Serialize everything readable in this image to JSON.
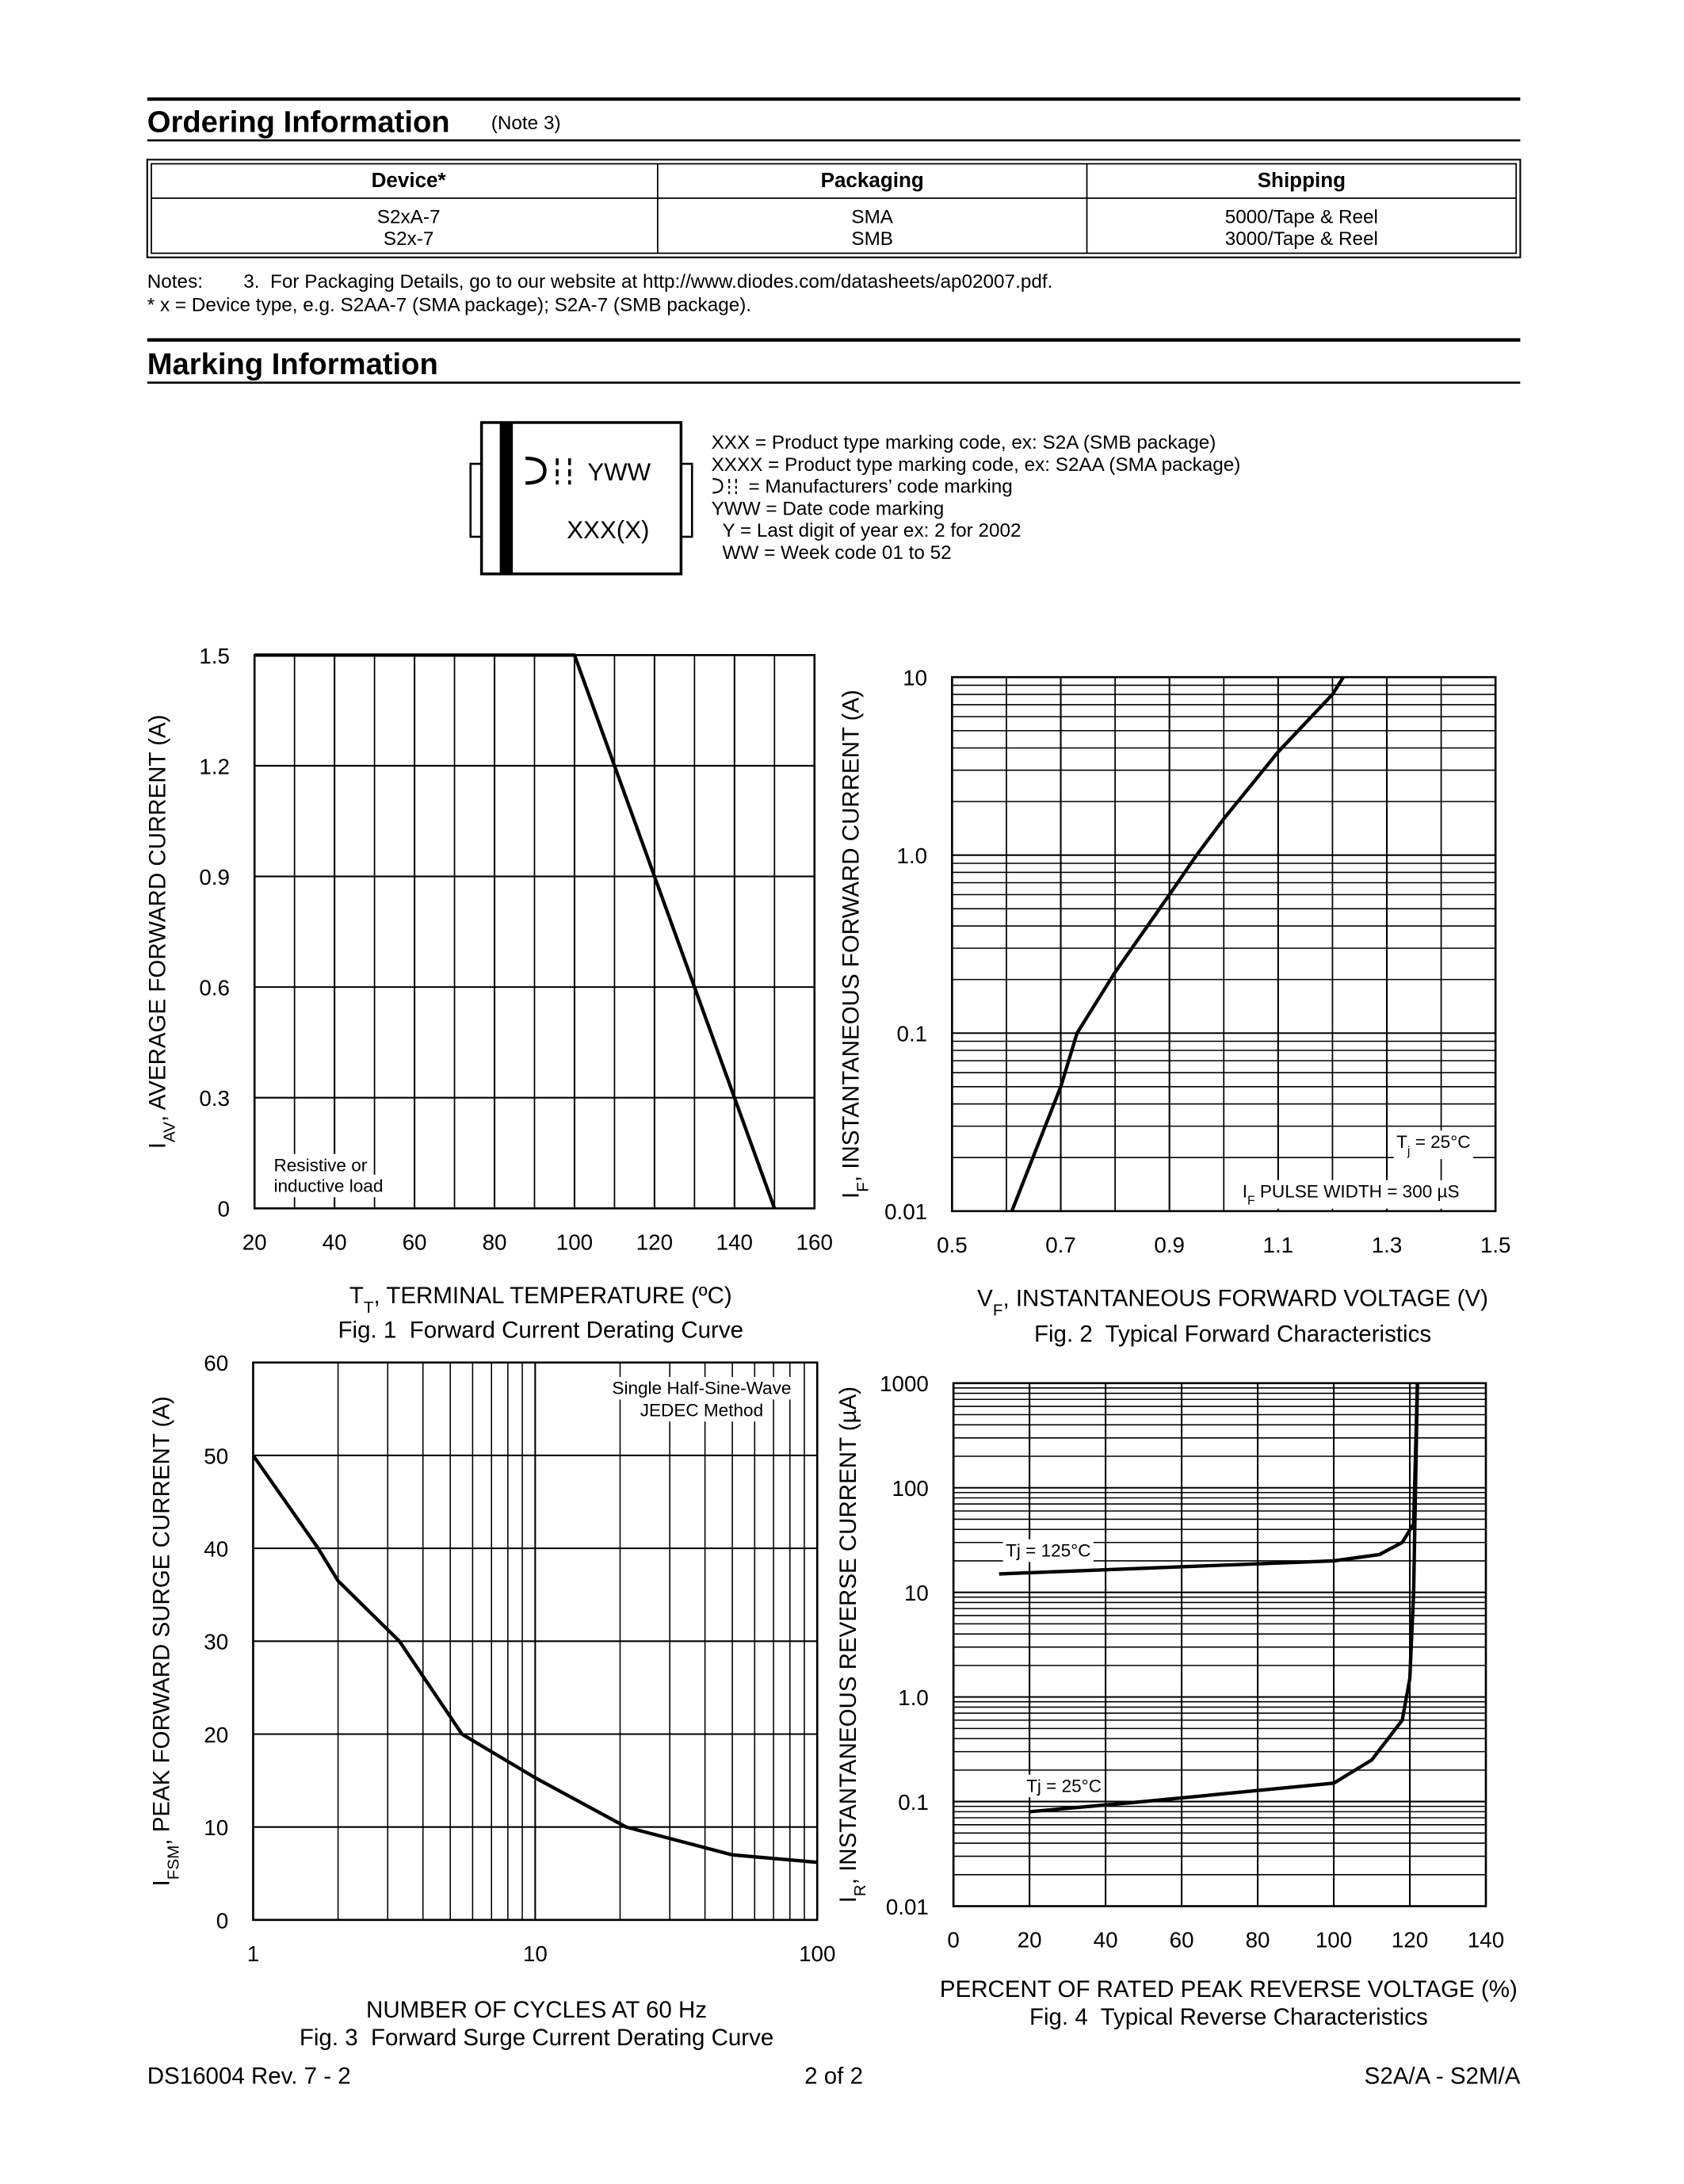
{
  "ordering": {
    "title": "Ordering Information",
    "note_ref": "(Note 3)",
    "table": {
      "header": [
        "Device*",
        "Packaging",
        "Shipping"
      ],
      "rows": [
        [
          "S2xA-7",
          "SMA",
          "5000/Tape & Reel"
        ],
        [
          "S2x-7",
          "SMB",
          "3000/Tape & Reel"
        ]
      ]
    },
    "notes_label": "Notes:",
    "notes": [
      "3.  For Packaging Details, go to our website at http://www.diodes.com/datasheets/ap02007.pdf."
    ],
    "footnote": "* x = Device type, e.g. S2AA-7 (SMA package); S2A-7 (SMB package)."
  },
  "marking": {
    "title": "Marking Information",
    "package": {
      "date_code": "YWW",
      "type_code": "XXX(X)"
    },
    "legend": [
      "XXX = Product type marking code, ex: S2A (SMB package)",
      "XXXX = Product type marking code, ex: S2AA (SMA package)",
      "= Manufacturers’ code marking",
      "YWW = Date code marking",
      "Y = Last digit of year ex: 2 for 2002",
      "WW = Week code 01 to 52"
    ]
  },
  "chart_data": [
    {
      "type": "line",
      "xlabel": [
        "T",
        "T",
        ", TERMINAL TEMPERATURE (ºC)"
      ],
      "ylabel": [
        "I",
        "AV",
        ", AVERAGE FORWARD CURRENT (A)"
      ],
      "caption": "Fig. 1  Forward Current Derating Curve",
      "xlim": [
        20,
        160
      ],
      "xticks": [
        20,
        40,
        60,
        80,
        100,
        120,
        140,
        160
      ],
      "ylim": [
        0,
        1.5
      ],
      "yticks": [
        0,
        0.3,
        0.6,
        0.9,
        1.2,
        1.5
      ],
      "grid": true,
      "minor_x_grid": true,
      "series": [
        {
          "color": "#000000",
          "x": [
            20,
            100,
            150
          ],
          "values": [
            1.5,
            1.5,
            0
          ]
        }
      ],
      "annotations": [
        [
          "Resistive or"
        ],
        [
          "inductive load"
        ]
      ]
    },
    {
      "type": "line",
      "xlabel": [
        "V",
        "F",
        ", INSTANTANEOUS FORWARD VOLTAGE (V)"
      ],
      "ylabel": [
        "I",
        "F",
        ", INSTANTANEOUS FORWARD CURRENT (A)"
      ],
      "caption": "Fig. 2  Typical Forward Characteristics",
      "xlim": [
        0.5,
        1.5
      ],
      "xticks": [
        0.5,
        0.7,
        0.9,
        1.1,
        1.3,
        1.5
      ],
      "ylim": [
        0.01,
        10
      ],
      "ylog": true,
      "yticks": [
        0.01,
        0.1,
        {
          "value": 1,
          "label": "1.0"
        },
        10
      ],
      "grid": true,
      "minor_x_grid": true,
      "series": [
        {
          "color": "#000000",
          "x": [
            0.61,
            0.7,
            0.73,
            0.8,
            0.9,
            0.95,
            1.0,
            1.1,
            1.2,
            1.22
          ],
          "values": [
            0.01,
            0.05,
            0.1,
            0.22,
            0.6,
            1.0,
            1.6,
            3.8,
            8,
            10
          ]
        }
      ],
      "annotations": [
        [
          "T",
          "j",
          " = 25°C"
        ],
        [
          "I",
          "F",
          " PULSE WIDTH = 300 µS"
        ]
      ]
    },
    {
      "type": "line",
      "xlabel": [
        "NUMBER OF CYCLES AT 60 Hz"
      ],
      "ylabel": [
        "I",
        "FSM",
        ", PEAK FORWARD SURGE CURRENT (A)"
      ],
      "caption": "Fig. 3  Forward Surge Current Derating Curve",
      "xlim": [
        1,
        100
      ],
      "xlog": true,
      "xticks": [
        1,
        10,
        100
      ],
      "ylim": [
        0,
        60
      ],
      "yticks": [
        0,
        10,
        20,
        30,
        40,
        50,
        60
      ],
      "grid": true,
      "series": [
        {
          "color": "#000000",
          "x": [
            1,
            1.7,
            2,
            3.3,
            5.5,
            10,
            21,
            50,
            100
          ],
          "values": [
            50,
            40,
            36.5,
            30,
            20,
            15.3,
            10,
            7,
            6.2
          ]
        }
      ],
      "annotations": [
        [
          "Single Half-Sine-Wave"
        ],
        [
          "JEDEC Method"
        ]
      ]
    },
    {
      "type": "line",
      "xlabel": [
        "PERCENT OF RATED PEAK REVERSE VOLTAGE (%)"
      ],
      "ylabel": [
        "I",
        "R",
        ", INSTANTANEOUS REVERSE CURRENT (µA)"
      ],
      "caption": "Fig. 4  Typical Reverse Characteristics",
      "xlim": [
        0,
        140
      ],
      "xticks": [
        0,
        20,
        40,
        60,
        80,
        100,
        120,
        140
      ],
      "ylim": [
        0.01,
        1000
      ],
      "ylog": true,
      "yticks": [
        0.01,
        0.1,
        {
          "value": 1,
          "label": "1.0"
        },
        10,
        100,
        1000
      ],
      "grid": true,
      "series": [
        {
          "name": "Tj = 125°C",
          "color": "#000000",
          "x": [
            12,
            50,
            100,
            112,
            118,
            121,
            122
          ],
          "values": [
            15,
            17,
            20,
            23,
            30,
            45,
            1000
          ]
        },
        {
          "name": "Tj = 25°C",
          "color": "#000000",
          "x": [
            20,
            50,
            100,
            110,
            118,
            120,
            121,
            122
          ],
          "values": [
            0.08,
            0.1,
            0.15,
            0.25,
            0.6,
            1.5,
            10,
            1000
          ]
        }
      ],
      "annotations": []
    }
  ],
  "footer": {
    "left": "DS16004 Rev. 7 - 2",
    "center": "2 of 2",
    "right": "S2A/A - S2M/A"
  }
}
